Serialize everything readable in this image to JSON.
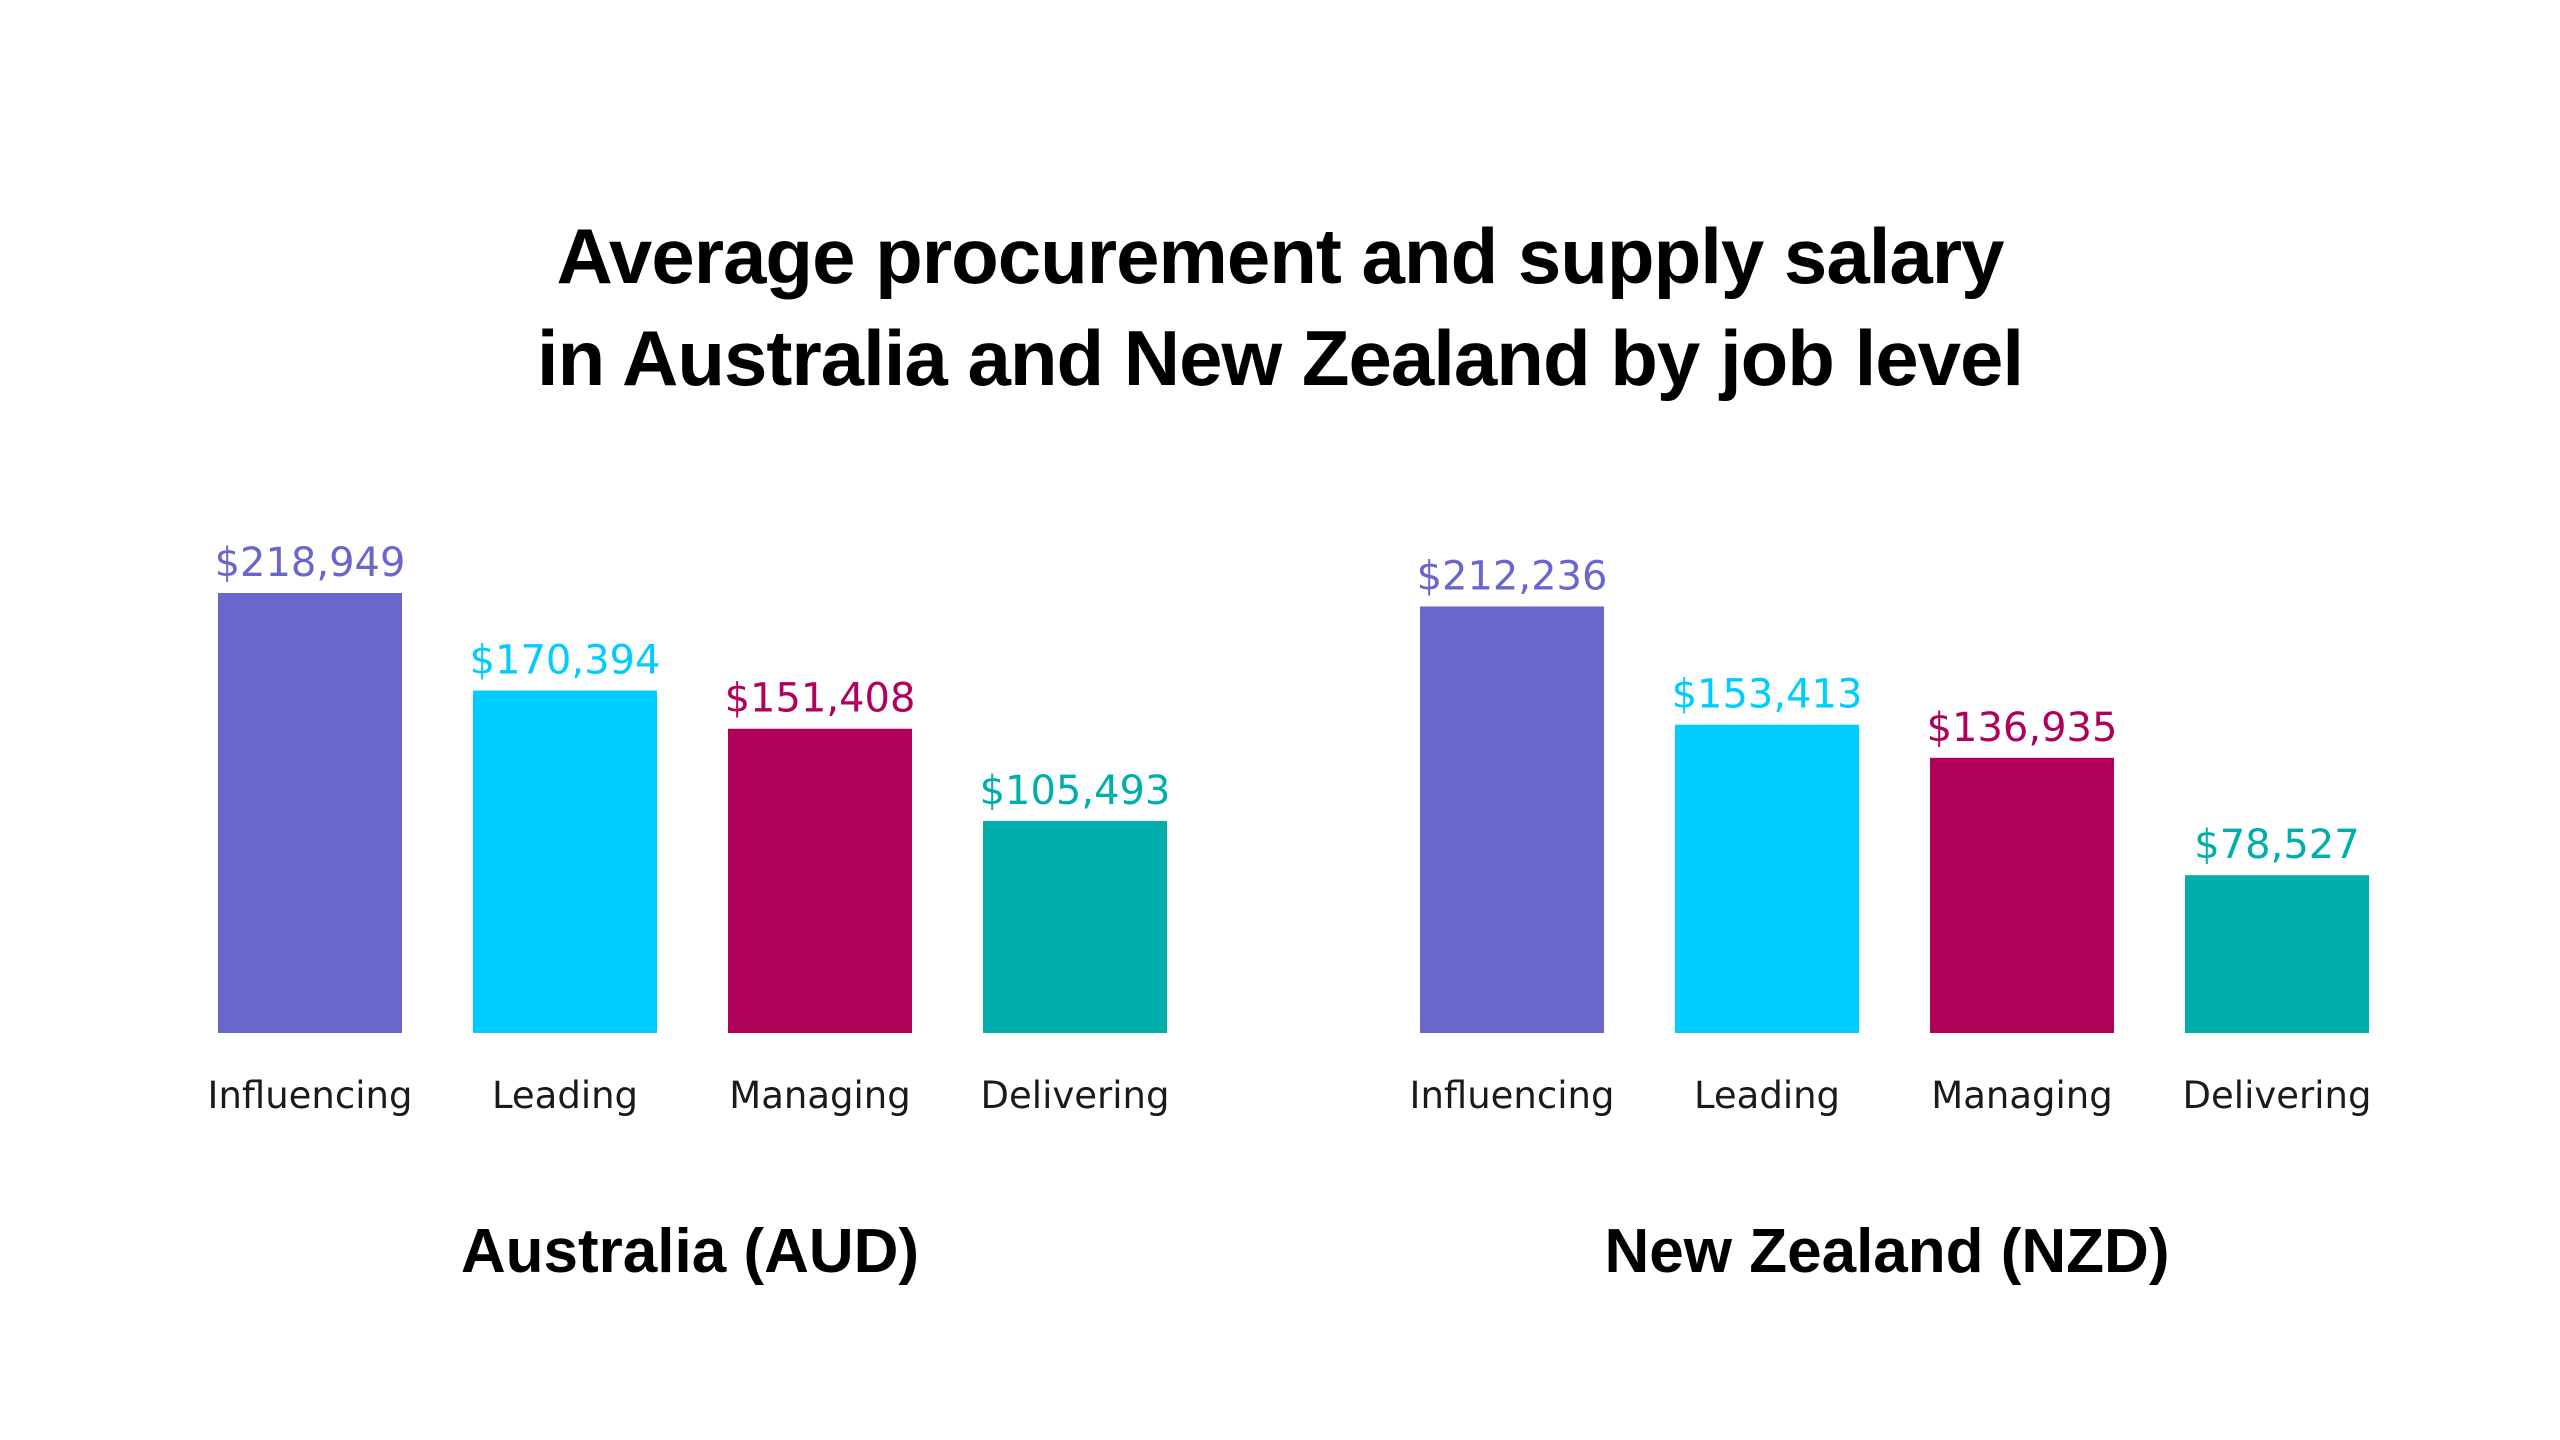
{
  "title": {
    "line1": "Average procurement and supply salary",
    "line2": "in Australia and New Zealand by job level"
  },
  "colors": [
    "#6a67cc",
    "#00cdff",
    "#b1005a",
    "#00afac"
  ],
  "chart_data": [
    {
      "type": "bar",
      "title": "Australia (AUD)",
      "categories": [
        "Influencing",
        "Leading",
        "Managing",
        "Delivering"
      ],
      "values": [
        218949,
        170394,
        151408,
        105493
      ],
      "value_labels": [
        "$218,949",
        "$170,394",
        "$151,408",
        "$105,493"
      ],
      "xlabel": "",
      "ylabel": "",
      "ylim": [
        0,
        218949
      ],
      "grid": false
    },
    {
      "type": "bar",
      "title": "New Zealand (NZD)",
      "categories": [
        "Influencing",
        "Leading",
        "Managing",
        "Delivering"
      ],
      "values": [
        212236,
        153413,
        136935,
        78527
      ],
      "value_labels": [
        "$212,236",
        "$153,413",
        "$136,935",
        "$78,527"
      ],
      "xlabel": "",
      "ylabel": "",
      "ylim": [
        0,
        212236
      ],
      "grid": false
    }
  ]
}
